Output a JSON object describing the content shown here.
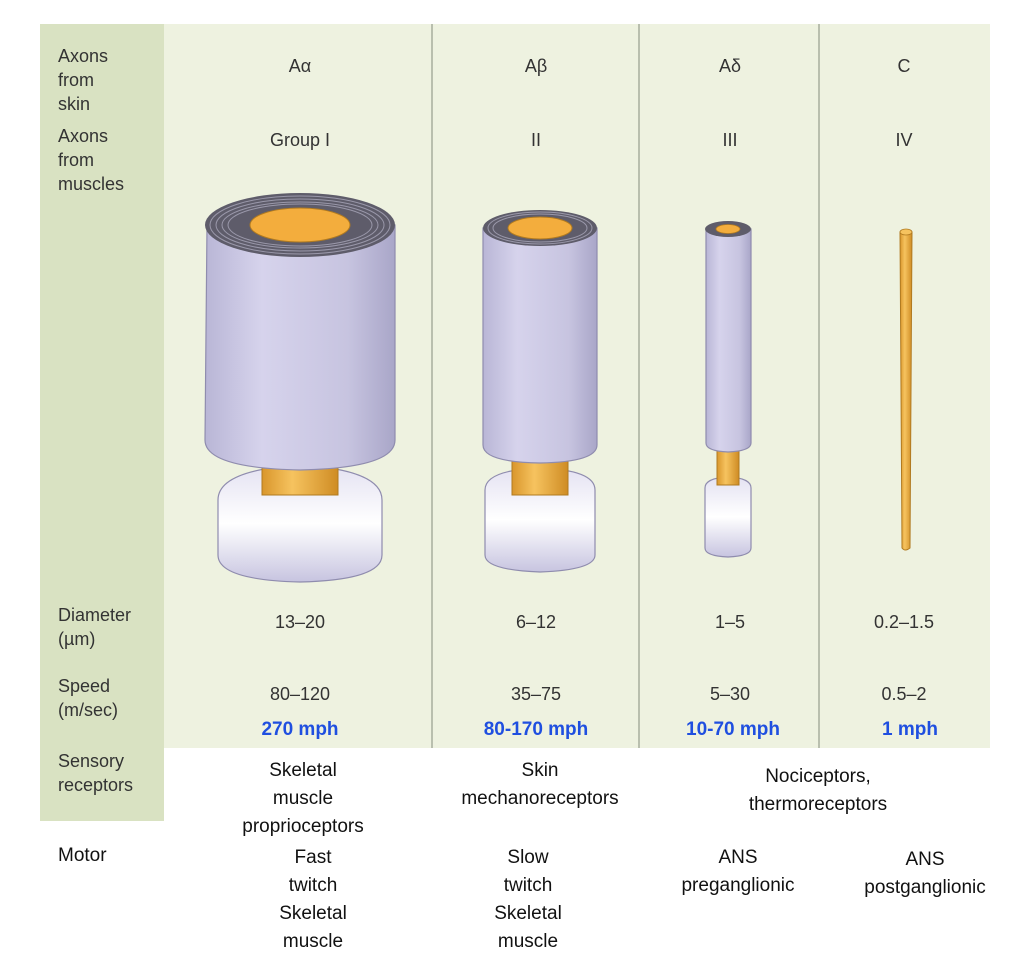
{
  "row_labels": {
    "axons_skin": "Axons\nfrom skin",
    "axons_muscles": "Axons\nfrom\nmuscles",
    "diameter": "Diameter\n(µm)",
    "speed": "Speed\n(m/sec)",
    "sensory": "Sensory\nreceptors",
    "motor": "Motor"
  },
  "columns": [
    {
      "skin": "Aα",
      "muscle": "Group I",
      "diameter": "13–20",
      "speed": "80–120",
      "mph": "270 mph",
      "motor": "Fast twitch Skeletal\nmuscle"
    },
    {
      "skin": "Aβ",
      "muscle": "II",
      "diameter": "6–12",
      "speed": "35–75",
      "mph": "80-170 mph",
      "motor": "Slow twitch\nSkeletal muscle"
    },
    {
      "skin": "Aδ",
      "muscle": "III",
      "diameter": "1–5",
      "speed": "5–30",
      "mph": "10-70 mph",
      "motor": "ANS\npreganglionic"
    },
    {
      "skin": "C",
      "muscle": "IV",
      "diameter": "0.2–1.5",
      "speed": "0.5–2",
      "mph": "1 mph",
      "motor": "ANS\npostganglionic"
    }
  ],
  "receptors": {
    "col1": "Skeletal muscle\nproprioceptors",
    "col2": "Skin\nmechanoreceptors",
    "col34": "Nociceptors,\nthermoreceptors"
  },
  "colors": {
    "myelin": "#cfcde6",
    "axon": "#f0b24a",
    "speed_text": "#1f4fe0",
    "panel_left": "#d9e2c2",
    "panel_main": "#eef2e0"
  }
}
